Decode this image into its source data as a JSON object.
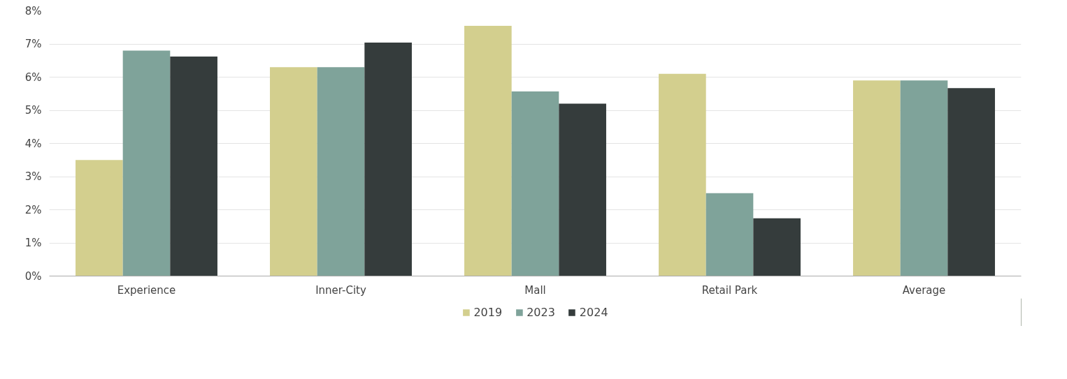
{
  "chart_data": {
    "type": "bar",
    "categories": [
      "Experience",
      "Inner-City",
      "Mall",
      "Retail Park",
      "Average"
    ],
    "series": [
      {
        "name": "2019",
        "color": "#d3cf8e",
        "values": [
          3.5,
          6.3,
          7.55,
          6.1,
          5.9
        ]
      },
      {
        "name": "2023",
        "color": "#7fa39a",
        "values": [
          6.8,
          6.3,
          5.57,
          2.5,
          5.9
        ]
      },
      {
        "name": "2024",
        "color": "#353c3c",
        "values": [
          6.62,
          7.04,
          5.2,
          1.74,
          5.67
        ]
      }
    ],
    "ylim": [
      0,
      8
    ],
    "yticks": [
      {
        "value": 0,
        "label": "0%"
      },
      {
        "value": 1,
        "label": "1%"
      },
      {
        "value": 2,
        "label": "2%"
      },
      {
        "value": 3,
        "label": "3%"
      },
      {
        "value": 4,
        "label": "4%"
      },
      {
        "value": 5,
        "label": "5%"
      },
      {
        "value": 6,
        "label": "6%"
      },
      {
        "value": 7,
        "label": "7%"
      },
      {
        "value": 8,
        "label": "8%"
      }
    ],
    "grid": "y",
    "legend": "bottom"
  }
}
